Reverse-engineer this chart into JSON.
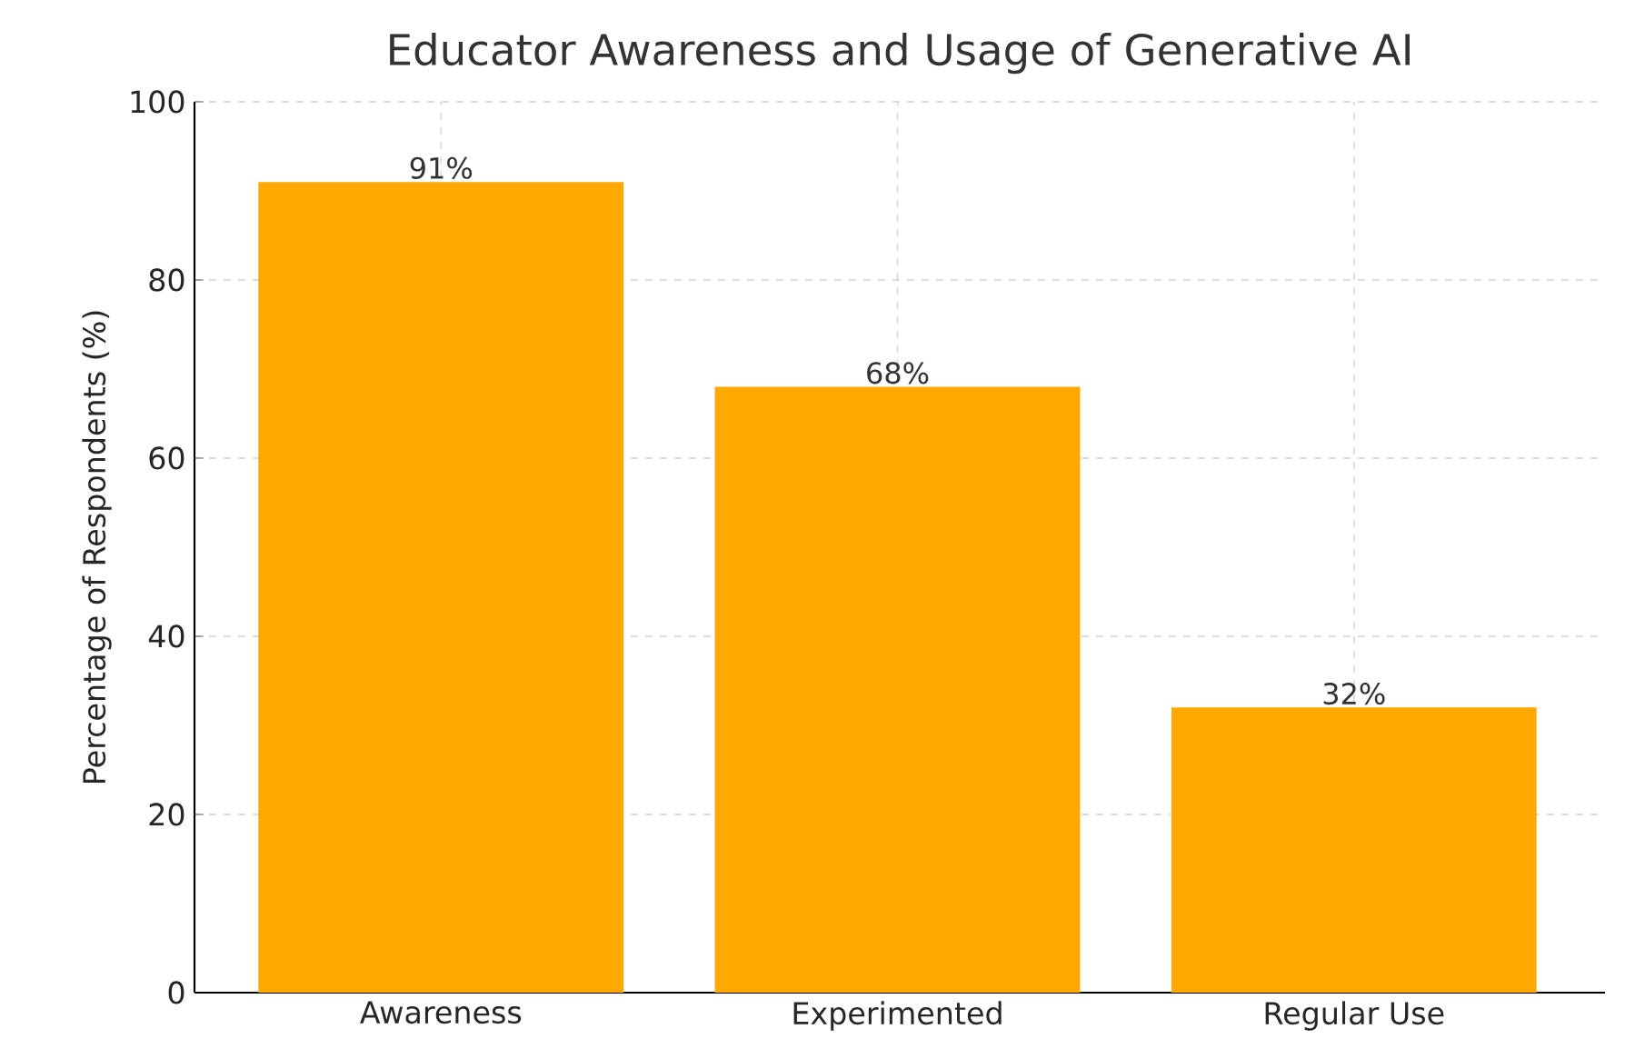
{
  "chart_data": {
    "type": "bar",
    "title": "Educator Awareness and Usage of Generative AI",
    "ylabel": "Percentage of Respondents (%)",
    "categories": [
      "Awareness",
      "Experimented",
      "Regular Use"
    ],
    "values": [
      91,
      68,
      32
    ],
    "value_labels": [
      "91%",
      "68%",
      "32%"
    ],
    "color": "#ffa800",
    "ylim": [
      0,
      100
    ],
    "yticks": [
      0,
      20,
      40,
      60,
      80,
      100
    ],
    "grid": true
  }
}
